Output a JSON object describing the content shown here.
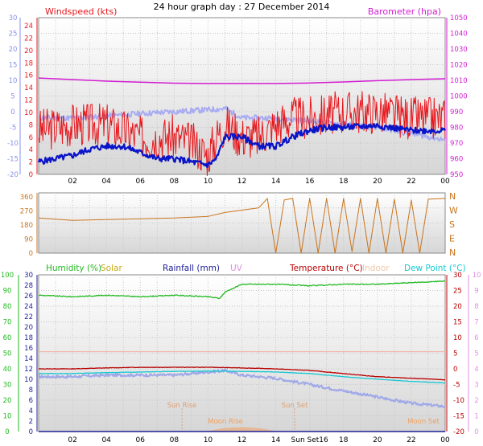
{
  "title": "24 hour graph day : 27 December 2014",
  "colors": {
    "wind": "#e8161c",
    "gust_avg": "#0a14c8",
    "gust_fade": "#a8acf0",
    "baro": "#d21dd2",
    "dir": "#c8741e",
    "humidity": "#22b922",
    "solar": "#c8a816",
    "rain": "#1d1d99",
    "uv": "#e08fe0",
    "temp": "#b80000",
    "indoor": "#f0c8a8",
    "dew": "#16c8d2",
    "feels": "#9fa8e8",
    "moon": "#f0a060",
    "sun": "#e0a070"
  },
  "x_ticks": [
    "02",
    "04",
    "06",
    "08",
    "10",
    "12",
    "14",
    "16",
    "18",
    "20",
    "22",
    "00"
  ],
  "bottom_x_ticks": [
    "02",
    "04",
    "06",
    "08",
    "10",
    "12",
    "14",
    "Sun Set16",
    "18",
    "20",
    "22",
    "00"
  ],
  "charts": {
    "wind": {
      "left_label": "Windspeed (kts)",
      "right_label": "Barometer (hpa)",
      "left_outer_ticks": [
        "30",
        "25",
        "20",
        "15",
        "10",
        "5",
        "0",
        "-5",
        "-10",
        "-15",
        "-20"
      ],
      "left_inner_ticks": [
        "24",
        "22",
        "20",
        "18",
        "16",
        "14",
        "12",
        "10",
        "8",
        "6",
        "4",
        "2",
        "0"
      ],
      "right_ticks": [
        "1050",
        "1040",
        "1030",
        "1020",
        "1010",
        "1000",
        "990",
        "980",
        "970",
        "960",
        "950"
      ]
    },
    "direction": {
      "left_ticks": [
        "360",
        "270",
        "180",
        "90",
        "0"
      ],
      "right_labels": [
        "N",
        "W",
        "S",
        "E",
        "N"
      ]
    },
    "bottom": {
      "legend": {
        "humidity": "Humidity (%)",
        "solar": "Solar",
        "rainfall": "Rainfall (mm)",
        "uv": "UV",
        "temperature": "Temperature (°C)",
        "indoor": "Indoor",
        "dewpoint": "Dew Point (°C)"
      },
      "humidity_ticks": [
        "100",
        "90",
        "80",
        "70",
        "60",
        "50",
        "40",
        "30",
        "20",
        "10",
        "0"
      ],
      "rain_ticks": [
        "30",
        "28",
        "26",
        "24",
        "22",
        "20",
        "18",
        "16",
        "14",
        "12",
        "10",
        "8",
        "6",
        "4",
        "2",
        "0"
      ],
      "temp_ticks": [
        "30",
        "25",
        "20",
        "15",
        "10",
        "5",
        "0",
        "-5",
        "-10",
        "-15",
        "-20"
      ],
      "uv_ticks": [
        "10",
        "9",
        "8",
        "7",
        "6",
        "5",
        "4",
        "3",
        "2",
        "1",
        "0"
      ],
      "annotations": {
        "sun_rise": "Sun Rise",
        "sun_set": "Sun Set",
        "moon_rise": "Moon Rise",
        "moon_set": "Moon Set"
      }
    }
  },
  "chart_data": [
    {
      "type": "line",
      "x_unit": "hour",
      "x_range": [
        0,
        24
      ],
      "ylim": [
        0,
        25
      ],
      "y2lim": [
        950,
        1050
      ],
      "series": [
        {
          "name": "Barometer (hpa)",
          "axis": "right",
          "x": [
            0,
            2,
            4,
            6,
            8,
            10,
            12,
            14,
            16,
            18,
            20,
            22,
            24
          ],
          "values": [
            1011.5,
            1010.5,
            1009.5,
            1008.8,
            1008.2,
            1008,
            1008,
            1008,
            1008.3,
            1009,
            1009.8,
            1010.5,
            1011
          ]
        },
        {
          "name": "Windspeed (kts)",
          "axis": "left",
          "x": [
            0,
            2,
            4,
            6,
            8,
            9,
            10,
            10.5,
            11,
            12,
            13,
            14,
            15,
            16,
            18,
            20,
            22,
            24
          ],
          "values": [
            7,
            8,
            8,
            6,
            6,
            5,
            3,
            6,
            8,
            6,
            6,
            8,
            9,
            9,
            10,
            10,
            9,
            9
          ]
        },
        {
          "x": [
            0,
            1,
            2,
            3,
            4,
            5,
            6,
            7,
            8,
            9,
            10,
            10.5,
            11,
            12,
            13,
            14,
            15,
            16,
            17,
            18,
            20,
            22,
            24
          ],
          "values": [
            2,
            2.5,
            3,
            4,
            4.5,
            4.5,
            3.5,
            2.5,
            2.5,
            2,
            1.5,
            2.5,
            6,
            6,
            4.5,
            4.5,
            6,
            7,
            7.5,
            7.5,
            7.8,
            7,
            7
          ]
        },
        {
          "x": [
            0,
            2,
            4,
            6,
            8,
            10,
            11,
            12,
            14,
            16,
            18,
            20,
            22,
            24
          ],
          "values": [
            9,
            9,
            9.3,
            9.7,
            10,
            10.3,
            10.5,
            9,
            9,
            8.5,
            8,
            7.5,
            6.5,
            5.5
          ]
        }
      ]
    },
    {
      "type": "line",
      "x_unit": "hour",
      "x_range": [
        0,
        24
      ],
      "ylim": [
        0,
        360
      ],
      "series": [
        {
          "x": [
            0,
            2,
            4,
            6,
            8,
            10,
            11,
            12,
            13,
            13.5,
            14,
            14.5,
            15,
            15.5,
            16,
            16.5,
            17,
            17.5,
            18,
            18.5,
            19,
            19.5,
            20,
            20.5,
            21,
            21.5,
            22,
            22.5,
            23,
            24
          ],
          "values": [
            225,
            210,
            215,
            220,
            225,
            235,
            260,
            275,
            290,
            350,
            0,
            340,
            350,
            0,
            350,
            0,
            350,
            0,
            350,
            10,
            350,
            0,
            350,
            0,
            345,
            0,
            340,
            0,
            345,
            350
          ]
        }
      ]
    },
    {
      "type": "line",
      "x_unit": "hour",
      "x_range": [
        0,
        24
      ],
      "ylim": [
        0,
        100
      ],
      "y2lim": [
        -20,
        30
      ],
      "series": [
        {
          "name": "Humidity (%)",
          "axis": "left",
          "x": [
            0,
            2,
            4,
            6,
            8,
            10,
            10.7,
            11,
            12,
            14,
            16,
            18,
            20,
            22,
            24
          ],
          "values": [
            87,
            86,
            87,
            86,
            87,
            86,
            85,
            89,
            94,
            94,
            93,
            94,
            94,
            95,
            96
          ]
        },
        {
          "name": "Temperature (°C)",
          "axis": "right",
          "x": [
            0,
            2,
            4,
            6,
            8,
            10,
            12,
            14,
            16,
            17,
            18,
            20,
            22,
            24
          ],
          "values": [
            0,
            0,
            0.3,
            0.5,
            0.5,
            0.5,
            0.3,
            0,
            -0.5,
            -1,
            -1.5,
            -2.5,
            -3,
            -3.5
          ]
        },
        {
          "name": "Dew Point (°C)",
          "axis": "right",
          "x": [
            0,
            2,
            4,
            6,
            8,
            10,
            12,
            14,
            16,
            17,
            18,
            20,
            22,
            24
          ],
          "values": [
            -1.5,
            -1.5,
            -1.2,
            -1,
            -0.8,
            -0.7,
            -0.8,
            -1,
            -1.5,
            -2,
            -2.5,
            -3.3,
            -4,
            -4.5
          ]
        },
        {
          "name": "UV",
          "axis": "right",
          "x": [
            0,
            24
          ],
          "values": [
            5.5,
            5.5
          ]
        },
        {
          "x": [
            0,
            2,
            4,
            6,
            8,
            10,
            11,
            12,
            14,
            16,
            18,
            20,
            22,
            24
          ],
          "values": [
            -2.5,
            -2.5,
            -2,
            -2,
            -2,
            -1,
            -0.5,
            -2,
            -3,
            -5,
            -7,
            -9,
            -11,
            -12
          ]
        },
        {
          "name": "Rainfall (mm)",
          "axis": "rain",
          "x": [
            0,
            24
          ],
          "values": [
            0,
            0
          ]
        }
      ]
    }
  ]
}
